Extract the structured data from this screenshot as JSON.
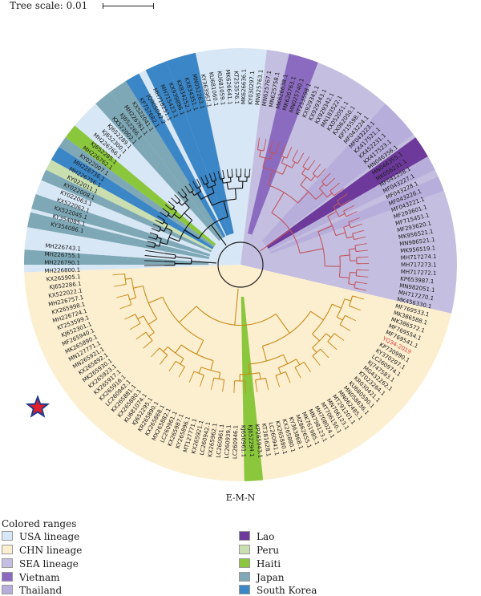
{
  "scale": {
    "label": "Tree scale: 0.01"
  },
  "caption": "E-M-N",
  "legend": {
    "title": "Colored ranges",
    "left": [
      {
        "label": "USA lineage",
        "color": "#d8e7f5"
      },
      {
        "label": "CHN lineage",
        "color": "#fcefd0"
      },
      {
        "label": "SEA lineage",
        "color": "#c4bfe0"
      },
      {
        "label": "Vietnam",
        "color": "#8b6bbf"
      },
      {
        "label": "Thailand",
        "color": "#b8aedb"
      }
    ],
    "right": [
      {
        "label": "Lao",
        "color": "#6d3a9c"
      },
      {
        "label": "Peru",
        "color": "#c9dfb0"
      },
      {
        "label": "Haiti",
        "color": "#8bc73d"
      },
      {
        "label": "Japan",
        "color": "#7ea8b6"
      },
      {
        "label": "South Korea",
        "color": "#3b86c6"
      }
    ]
  },
  "highlight_label": "YQ34-2019",
  "branch_colors": {
    "usa": "#111111",
    "chn": "#c98a18",
    "sea": "#c25560"
  },
  "sectors": [
    {
      "from": -80,
      "to": 7,
      "color": "#d8e7f5"
    },
    {
      "from": 7,
      "to": 103,
      "color": "#c4bfe0"
    },
    {
      "from": 103,
      "to": 268,
      "color": "#fcefd0"
    },
    {
      "from": 268,
      "to": 280,
      "color": "#d8e7f5"
    }
  ],
  "bands": [
    {
      "from": 13,
      "to": 21,
      "color": "#8b6bbf"
    },
    {
      "from": 42,
      "to": 53,
      "color": "#b8aedb"
    },
    {
      "from": 54,
      "to": 60,
      "color": "#6d3a9c"
    },
    {
      "from": 60,
      "to": 64,
      "color": "#b8aedb"
    },
    {
      "from": 66,
      "to": 70,
      "color": "#b8aedb"
    },
    {
      "from": 174,
      "to": 179,
      "color": "#8bc73d"
    },
    {
      "from": 270,
      "to": 274,
      "color": "#7ea8b6"
    },
    {
      "from": 274,
      "to": 276,
      "color": "#d8e7f5"
    },
    {
      "from": 280,
      "to": 284,
      "color": "#7ea8b6"
    },
    {
      "from": 285,
      "to": 289,
      "color": "#7ea8b6"
    },
    {
      "from": 293,
      "to": 296,
      "color": "#7ea8b6"
    },
    {
      "from": 296,
      "to": 299,
      "color": "#c9dfb0"
    },
    {
      "from": 299,
      "to": 303,
      "color": "#3b86c6"
    },
    {
      "from": 303,
      "to": 306,
      "color": "#7ea8b6"
    },
    {
      "from": 306,
      "to": 310,
      "color": "#8bc73d"
    },
    {
      "from": 318,
      "to": 323,
      "color": "#7ea8b6"
    },
    {
      "from": 323,
      "to": 328,
      "color": "#7ea8b6"
    },
    {
      "from": 328,
      "to": 332,
      "color": "#3b86c6"
    },
    {
      "from": 334,
      "to": 340,
      "color": "#3b86c6"
    },
    {
      "from": 340,
      "to": 348,
      "color": "#3b86c6"
    }
  ],
  "labels": [
    "KY354086.1",
    "KY354085.1",
    "KX522045.1",
    "KX522062.1",
    "KY022063.1",
    "KY022008.1",
    "KY022011.1",
    "MH226756.1",
    "MH226736.1",
    "KY022007.1",
    "MH226762.1",
    "KJ652285.1",
    "MH226766.1",
    "KJ652300.1",
    "KJ652289.1",
    "KX522002.1",
    "KJ652266.1",
    "MH226761.1",
    "KX522041.1",
    "KP757682.1",
    "JQ905042.2",
    "MH718251.1",
    "MH715423.1",
    "KX939896.1",
    "KX834252.1",
    "KX834351.1",
    "MN052263.1",
    "KY363967.1",
    "KU681060.1",
    "KU681059.1",
    "MK626641.1",
    "KT253576.1",
    "MK626636.1",
    "KY030297.1",
    "MN625763.1",
    "MN625767.1",
    "MN625758.1",
    "MK626638.1",
    "MK626763.1",
    "MN025740.1",
    "KT253598.1",
    "KX929345.1",
    "KX929343.1",
    "KX929342.1",
    "MN183522.1",
    "KX052051.1",
    "KX062050.1",
    "KP715598.1",
    "MF043224.1",
    "MF043223.1",
    "KX417521.1",
    "KX452231.1",
    "KX417523.1",
    "MN046356.1",
    "MN046355.1",
    "MK056231.1",
    "MF041258.1",
    "MF043227.1",
    "MF043228.1",
    "MF043226.1",
    "MF043221.1",
    "MF293601.1",
    "MF715451.1",
    "MF293620.1",
    "MK956521.1",
    "MN986521.1",
    "MK956519.1",
    "MH717274.1",
    "MH717273.1",
    "MH717272.1",
    "KP653987.1",
    "MN982051.1",
    "MH717270.1",
    "MK456330.1",
    "MF769533.1",
    "MK386588.1",
    "MK386572.1",
    "MF769554.1",
    "MF769541.1",
    "YQ34-2019",
    "KP730990.1",
    "KY370297.1",
    "LC260974.1",
    "KJ747583.1",
    "MG432262.1",
    "KT023264.1",
    "KR030421.1",
    "KU680590.1",
    "MN058636.1",
    "MN062485.1",
    "MT291201.1",
    "MN706123.1",
    "MT706150.1",
    "MH708024.1",
    "MN798123.1",
    "MK761985.1",
    "MZ862655.1",
    "KY363868.1",
    "KX265880.1",
    "KX265880.1",
    "LC260941.1",
    "KT381628.1",
    "KP265943.1",
    "KJ652294.1",
    "KJ650961.1",
    "LC260946.1",
    "LC260939.1",
    "LC260961.1",
    "KX265962.1",
    "LC260942.1",
    "KX265921.1",
    "MT127771.1",
    "KY265896.1",
    "KX265987.1",
    "LC260961.1",
    "MX265882.1",
    "KX265868.1",
    "KR265890.1",
    "KJ652295.1",
    "KU681074.1",
    "KX265880.1",
    "KX265881.1",
    "LC260942.1",
    "KX265916.1",
    "KX265917.1",
    "KX265923.1",
    "MK265930.1",
    "KX265892.1",
    "MN265921.1",
    "MN127771.1",
    "MK265890.1",
    "MF265940.1",
    "KJ652301.1",
    "KT253599.1",
    "MH226724.1",
    "KX265998.1",
    "MH226757.1",
    "KX522022.1",
    "KJ652286.1",
    "KX265905.1",
    "MH226800.1",
    "MH226790.1",
    "MH226755.1",
    "MH226743.1"
  ]
}
